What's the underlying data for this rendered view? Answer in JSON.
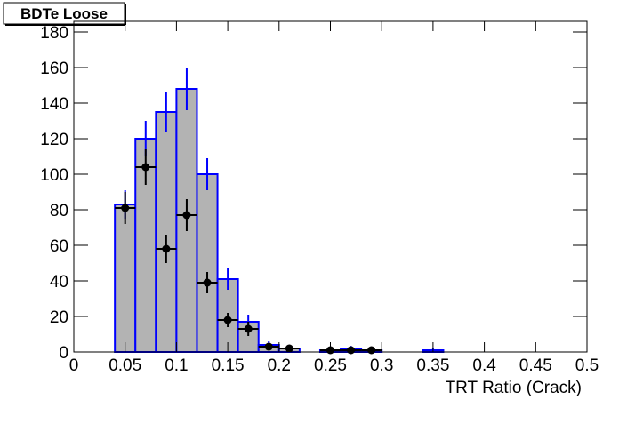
{
  "chart_data": {
    "type": "histogram",
    "title": "BDTe Loose",
    "x_label": "TRT Ratio (Crack)",
    "bins": [
      0,
      0.02,
      0.04,
      0.06,
      0.08,
      0.1,
      0.12,
      0.14,
      0.16,
      0.18,
      0.2,
      0.22,
      0.24,
      0.26,
      0.28,
      0.3,
      0.32,
      0.34,
      0.36,
      0.38,
      0.4,
      0.42,
      0.44,
      0.46,
      0.48,
      0.5
    ],
    "counts": [
      0,
      0,
      83,
      120,
      135,
      148,
      100,
      41,
      17,
      4,
      2,
      0,
      1,
      2,
      1,
      0,
      0,
      1,
      0,
      0,
      0,
      0,
      0,
      0,
      0
    ],
    "errors": [
      0,
      0,
      8,
      10,
      11,
      12,
      9,
      6,
      4,
      2,
      1.4,
      0,
      1,
      1.4,
      1,
      0,
      0,
      1,
      0,
      0,
      0,
      0,
      0,
      0,
      0
    ],
    "fill_color": "#b3b3b3",
    "line_color": "#0000ff",
    "points": {
      "color": "#000000",
      "x": [
        0.05,
        0.07,
        0.09,
        0.11,
        0.13,
        0.15,
        0.17,
        0.19,
        0.21,
        0.25,
        0.27,
        0.29
      ],
      "values": [
        81,
        104,
        58,
        77,
        39,
        18,
        13,
        3,
        2,
        1,
        1,
        1
      ],
      "errors": [
        9,
        10,
        8,
        9,
        6,
        4,
        4,
        2,
        1.4,
        1,
        1,
        1
      ],
      "x_errors": [
        0.01,
        0.01,
        0.01,
        0.01,
        0.01,
        0.01,
        0.01,
        0.01,
        0.01,
        0.01,
        0.01,
        0.01
      ]
    },
    "xlim": [
      0,
      0.5
    ],
    "ylim": [
      0,
      186
    ],
    "xticks": [
      0,
      0.05,
      0.1,
      0.15,
      0.2,
      0.25,
      0.3,
      0.35,
      0.4,
      0.45,
      0.5
    ],
    "yticks": [
      0,
      20,
      40,
      60,
      80,
      100,
      120,
      140,
      160,
      180
    ]
  }
}
